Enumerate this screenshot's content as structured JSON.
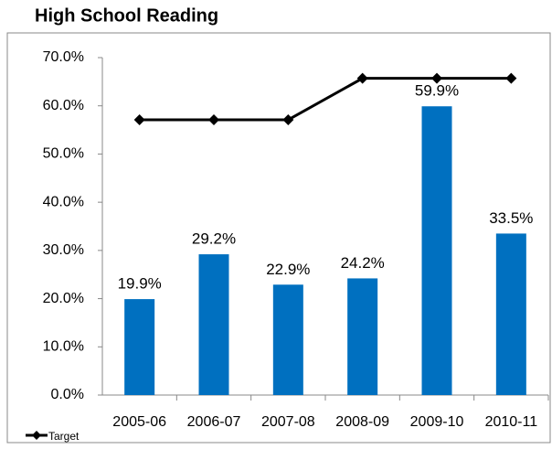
{
  "chart_data": {
    "type": "bar",
    "title": "High School Reading",
    "categories": [
      "2005-06",
      "2006-07",
      "2007-08",
      "2008-09",
      "2009-10",
      "2010-11"
    ],
    "series": [
      {
        "color": "#0070c0",
        "values": [
          19.9,
          29.2,
          22.9,
          24.2,
          59.9,
          33.5
        ],
        "value_labels": [
          "19.9%",
          "29.2%",
          "22.9%",
          "24.2%",
          "59.9%",
          "33.5%"
        ]
      },
      {
        "name": "Target",
        "type": "line",
        "color": "#000000",
        "values": [
          57.1,
          57.1,
          57.1,
          65.7,
          65.7,
          65.7
        ]
      }
    ],
    "ylim": [
      0,
      70
    ],
    "yticks": [
      {
        "value": 0,
        "label": "0.0%"
      },
      {
        "value": 10,
        "label": "10.0%"
      },
      {
        "value": 20,
        "label": "20.0%"
      },
      {
        "value": 30,
        "label": "30.0%"
      },
      {
        "value": 40,
        "label": "40.0%"
      },
      {
        "value": 50,
        "label": "50.0%"
      },
      {
        "value": 60,
        "label": "60.0%"
      },
      {
        "value": 70,
        "label": "70.0%"
      }
    ],
    "legend": "bottom-left"
  }
}
